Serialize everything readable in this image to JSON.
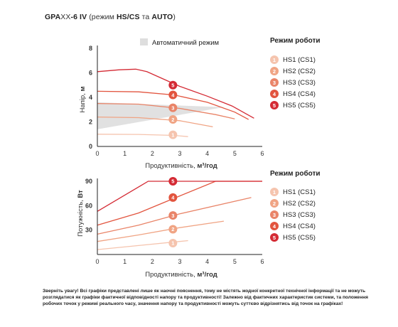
{
  "title": {
    "model": "GPA",
    "model_xx": "XX",
    "model_tail": "-6 IV",
    "paren_open": " (режим ",
    "modes": "HS/CS",
    "conj": " та ",
    "auto": "AUTO",
    "paren_close": ")"
  },
  "legend": {
    "title": "Режим роботи",
    "items": [
      {
        "num": "1",
        "label": "HS1 (CS1)",
        "color": "#f5c4ae"
      },
      {
        "num": "2",
        "label": "HS2 (CS2)",
        "color": "#f0a484"
      },
      {
        "num": "3",
        "label": "HS3 (CS3)",
        "color": "#e98468"
      },
      {
        "num": "4",
        "label": "HS4 (CS4)",
        "color": "#e2543e"
      },
      {
        "num": "5",
        "label": "HS5 (CS5)",
        "color": "#d42a34"
      }
    ]
  },
  "disclaimer": "Зверніть увагу! Всі графіки представлені лише як наочні пояснення, тому не містять жодної конкретної технічної інформації та не можуть розглядатися як графіки фактичної відповідності напору та продуктивності! Залежно від фактичних характеристик системи, та положення робочих точок у режимі реального часу, значення напору та продуктивності можуть суттєво відрізнятись від точок на графіках!",
  "chart_data": [
    {
      "type": "line",
      "name_key": "head",
      "shade_label": "Автоматичний режим",
      "xlabel_main": "Продуктивність, ",
      "xlabel_unit": "м³/год",
      "ylabel_main": "Напір, ",
      "ylabel_unit": "м",
      "xlim": [
        0,
        6
      ],
      "ylim": [
        0,
        8
      ],
      "xticks": [
        "0",
        "1",
        "2",
        "3",
        "4",
        "5",
        "6"
      ],
      "yticks": [
        "0",
        "2",
        "4",
        "6",
        "8"
      ],
      "shaded_region": [
        [
          0,
          1.4
        ],
        [
          4.6,
          3.2
        ],
        [
          0,
          3.6
        ]
      ],
      "series": [
        {
          "num": "1",
          "points": [
            [
              0,
              1.0
            ],
            [
              1.5,
              0.98
            ],
            [
              2.8,
              0.9
            ],
            [
              3.3,
              0.8
            ]
          ],
          "marker": [
            2.75,
            0.95
          ]
        },
        {
          "num": "2",
          "points": [
            [
              0,
              2.4
            ],
            [
              1.5,
              2.35
            ],
            [
              3.0,
              2.1
            ],
            [
              4.2,
              1.6
            ]
          ],
          "marker": [
            2.75,
            2.2
          ]
        },
        {
          "num": "3",
          "points": [
            [
              0,
              3.5
            ],
            [
              1.5,
              3.45
            ],
            [
              3.0,
              3.1
            ],
            [
              4.3,
              2.6
            ],
            [
              5.0,
              2.25
            ]
          ],
          "marker": [
            2.75,
            3.15
          ]
        },
        {
          "num": "4",
          "points": [
            [
              0,
              4.5
            ],
            [
              1.5,
              4.45
            ],
            [
              2.8,
              4.2
            ],
            [
              4.0,
              3.6
            ],
            [
              5.0,
              2.8
            ],
            [
              5.5,
              2.2
            ]
          ],
          "marker": [
            2.75,
            4.2
          ]
        },
        {
          "num": "5",
          "points": [
            [
              0,
              6.1
            ],
            [
              0.8,
              6.25
            ],
            [
              1.4,
              6.3
            ],
            [
              1.8,
              6.1
            ],
            [
              2.4,
              5.5
            ],
            [
              3.0,
              4.9
            ],
            [
              4.0,
              4.1
            ],
            [
              4.9,
              3.3
            ],
            [
              5.3,
              2.8
            ],
            [
              5.7,
              2.3
            ]
          ],
          "marker": [
            2.75,
            5.0
          ]
        }
      ]
    },
    {
      "type": "line",
      "name_key": "power",
      "xlabel_main": "Продуктивність, ",
      "xlabel_unit": "м³/год",
      "ylabel_main": "Потужність, ",
      "ylabel_unit": "Вт",
      "xlim": [
        0,
        6
      ],
      "ylim": [
        0,
        90
      ],
      "xticks": [
        "0",
        "1",
        "2",
        "3",
        "4",
        "5",
        "6"
      ],
      "yticks": [
        "30",
        "60",
        "90"
      ],
      "series": [
        {
          "num": "1",
          "points": [
            [
              0,
              6
            ],
            [
              1.5,
              11
            ],
            [
              3.3,
              17
            ]
          ],
          "marker": [
            2.75,
            14
          ]
        },
        {
          "num": "2",
          "points": [
            [
              0,
              16
            ],
            [
              1.5,
              24
            ],
            [
              3.0,
              33
            ],
            [
              4.6,
              41
            ]
          ],
          "marker": [
            2.75,
            31
          ]
        },
        {
          "num": "3",
          "points": [
            [
              0,
              25
            ],
            [
              1.5,
              36
            ],
            [
              3.0,
              50
            ],
            [
              5.6,
              70
            ]
          ],
          "marker": [
            2.75,
            48
          ]
        },
        {
          "num": "4",
          "points": [
            [
              0,
              36
            ],
            [
              1.5,
              51
            ],
            [
              3.0,
              72
            ],
            [
              4.3,
              90
            ],
            [
              5.0,
              90
            ],
            [
              6.0,
              90
            ]
          ],
          "marker": [
            2.75,
            70
          ]
        },
        {
          "num": "5",
          "points": [
            [
              0,
              53
            ],
            [
              1.6,
              85
            ],
            [
              1.85,
              90
            ],
            [
              6.0,
              90
            ]
          ],
          "marker": [
            2.75,
            90
          ]
        }
      ]
    }
  ]
}
